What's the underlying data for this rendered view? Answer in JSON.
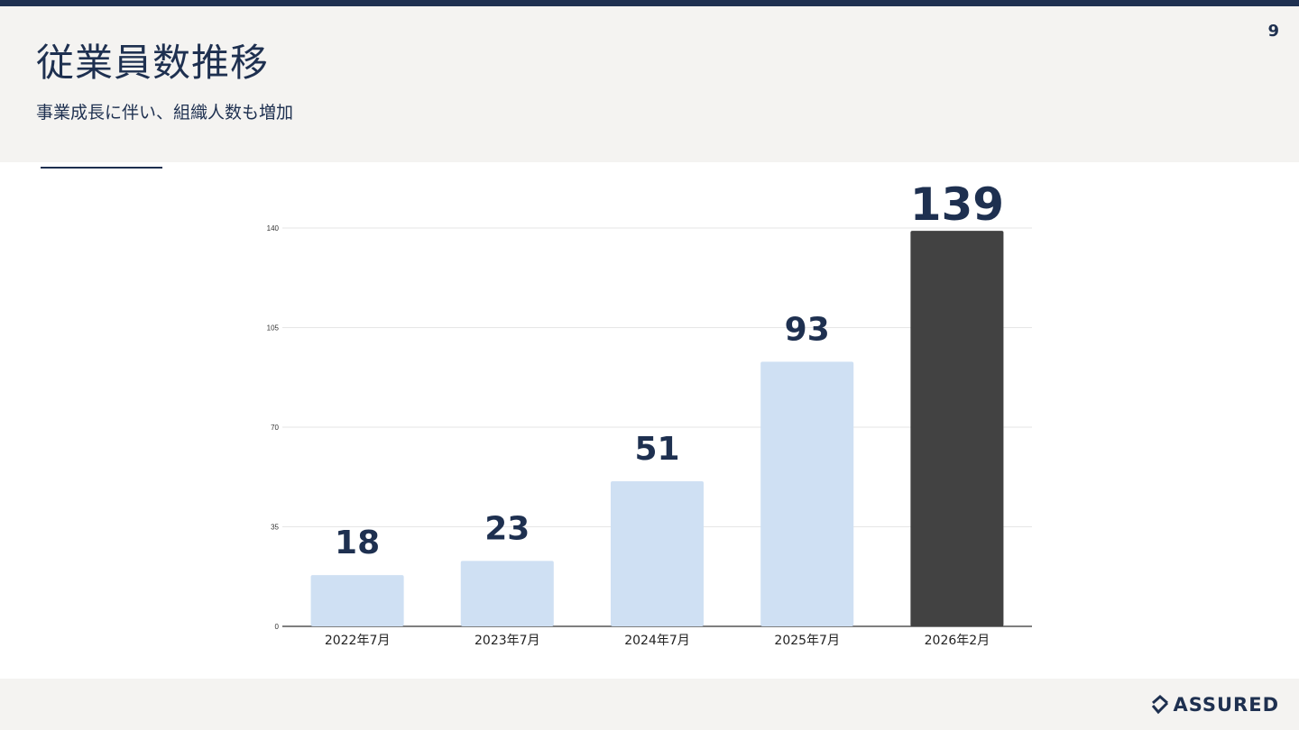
{
  "page": {
    "number": "9",
    "title": "従業員数推移",
    "subtitle": "事業成長に伴い、組織人数も増加"
  },
  "brand": {
    "logo_text": "ASSURED",
    "navy": "#1e3050",
    "panel_bg": "#f4f3f1"
  },
  "chart_data": {
    "type": "bar",
    "title": "",
    "xlabel": "",
    "ylabel": "",
    "categories": [
      "2022年7月",
      "2023年7月",
      "2024年7月",
      "2025年7月",
      "2026年2月"
    ],
    "values": [
      18,
      23,
      51,
      93,
      139
    ],
    "data_labels": [
      "18",
      "23",
      "51",
      "93",
      "139"
    ],
    "ylim": [
      0,
      140
    ],
    "yticks": [
      0,
      35,
      70,
      105,
      140
    ],
    "grid": true,
    "legend": "none",
    "bar_colors": [
      "#cfe0f3",
      "#cfe0f3",
      "#cfe0f3",
      "#cfe0f3",
      "#424242"
    ],
    "highlight_index": 4,
    "gridline_color": "#e6e6e6",
    "axis_color": "#333333",
    "label_color": "#1e3050"
  }
}
